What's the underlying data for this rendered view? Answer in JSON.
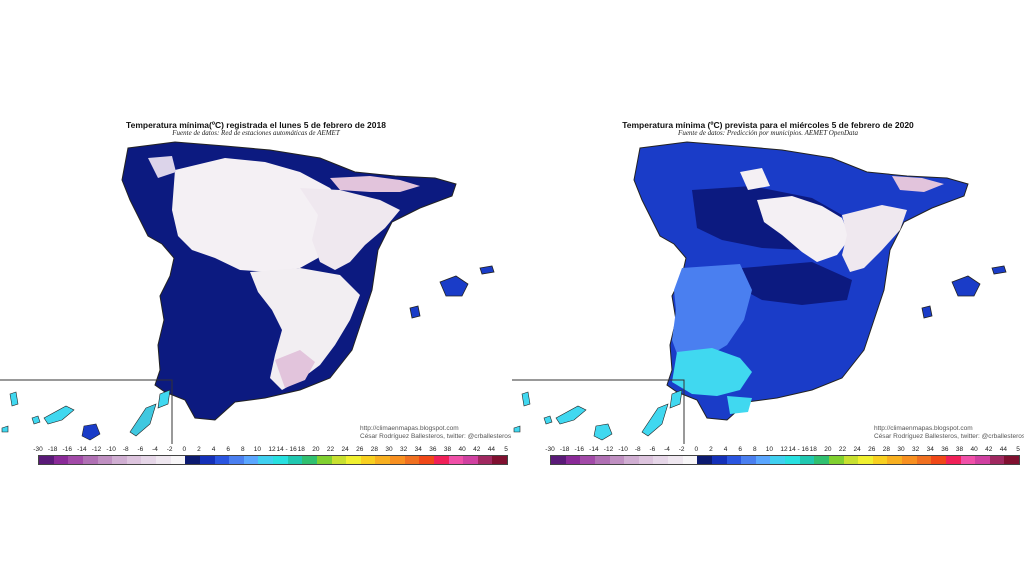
{
  "panels": [
    {
      "title": "Temperatura mínima(ºC) registrada el lunes 5 de febrero de 2018",
      "source": "Fuente de datos: Red de estaciones automáticas de AEMET",
      "credit_url": "http://climaenmapas.blogspot.com",
      "credit_author": "César Rodríguez Ballesteros, twitter: @crballesteros"
    },
    {
      "title": "Temperatura mínima (ºC) prevista para el miércoles 5 de febrero de 2020",
      "source": "Fuente de datos: Predicción por municipios. AEMET OpenData",
      "credit_url": "http://climaenmapas.blogspot.com",
      "credit_author": "César Rodríguez Ballesteros, twitter: @crballesteros"
    }
  ],
  "legend": {
    "tick_labels": [
      "-30",
      "-18",
      "-16",
      "-14",
      "-12",
      "-10",
      "-8",
      "-6",
      "-4",
      "-2",
      "0",
      "2",
      "4",
      "6",
      "8",
      "10",
      "12",
      "14 - 16",
      "18",
      "20",
      "22",
      "24",
      "26",
      "28",
      "30",
      "32",
      "34",
      "36",
      "38",
      "40",
      "42",
      "44",
      "5"
    ],
    "colors": [
      "#5a1a78",
      "#8a2a98",
      "#a24aa8",
      "#b070b4",
      "#c090c2",
      "#d0aed2",
      "#ddc4de",
      "#e6d6e8",
      "#efe7f0",
      "#f8f6f8",
      "#0c1a70",
      "#1430b8",
      "#2a55e0",
      "#4a7ff0",
      "#5aa6ff",
      "#40d0f0",
      "#28e0e0",
      "#20c8b0",
      "#30c070",
      "#80d030",
      "#c8e030",
      "#f0f030",
      "#f8d020",
      "#f8b020",
      "#f89020",
      "#f07020",
      "#f04818",
      "#f02058",
      "#f050a8",
      "#d040a0",
      "#a02860",
      "#801030"
    ]
  },
  "colors": {
    "deep_blue": "#0c1a80",
    "blue": "#1a3cc8",
    "light_blue": "#4a7ff0",
    "cyan": "#40d8f0",
    "white_frost": "#f4f0f4",
    "pink_frost": "#e2c4dc",
    "border_line": "#333333"
  }
}
